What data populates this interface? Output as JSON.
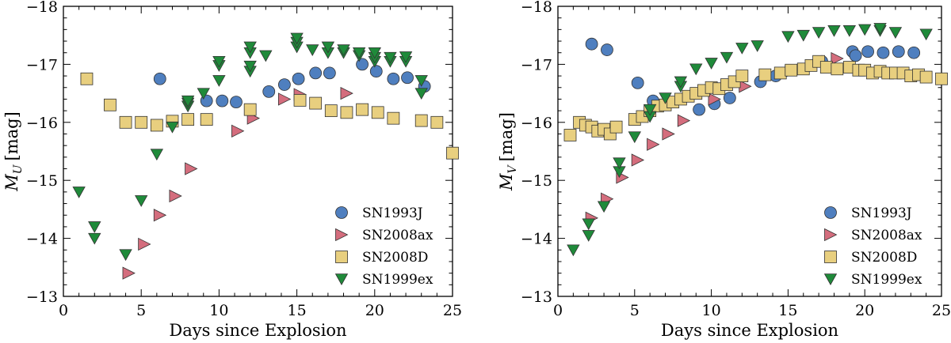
{
  "chart_data": [
    {
      "type": "scatter",
      "title": "",
      "xlabel": "Days since Explosion",
      "ylabel_main": "M",
      "ylabel_sub": "U",
      "ylabel_unit": "[mag]",
      "xlim": [
        0,
        25
      ],
      "ylim": [
        -13,
        -18
      ],
      "inverted_y": true,
      "xticks": [
        0,
        5,
        10,
        15,
        20,
        25
      ],
      "yticks": [
        -13,
        -14,
        -15,
        -16,
        -17,
        -18
      ],
      "xtick_labels": [
        "0",
        "5",
        "10",
        "15",
        "20",
        "25"
      ],
      "ytick_labels": [
        "−13",
        "−14",
        "−15",
        "−16",
        "−17",
        "−18"
      ],
      "legend_position": "lower-right",
      "series": [
        {
          "name": "SN1993J",
          "marker": "circle",
          "color": "#4f7fbf",
          "x": [
            6.2,
            9.2,
            10.2,
            11.1,
            13.2,
            14.2,
            15.1,
            16.2,
            17.1,
            19.2,
            20.1,
            21.2,
            22.1,
            23.2
          ],
          "y": [
            -16.75,
            -16.37,
            -16.37,
            -16.35,
            -16.53,
            -16.65,
            -16.75,
            -16.85,
            -16.85,
            -17.0,
            -16.88,
            -16.75,
            -16.77,
            -16.62
          ]
        },
        {
          "name": "SN2008ax",
          "marker": "triangle-right",
          "color": "#d46d7d",
          "x": [
            4.2,
            5.2,
            6.2,
            7.2,
            8.2,
            11.2,
            12.2,
            14.2,
            15.2,
            18.2
          ],
          "y": [
            -13.4,
            -13.9,
            -14.4,
            -14.73,
            -15.2,
            -15.85,
            -16.07,
            -16.4,
            -16.48,
            -16.5
          ]
        },
        {
          "name": "SN2008D",
          "marker": "square",
          "color": "#e8cf7f",
          "x": [
            1.5,
            3.0,
            4.0,
            5.0,
            6.0,
            7.0,
            8.0,
            9.2,
            12.0,
            15.2,
            16.2,
            17.2,
            18.2,
            19.2,
            20.2,
            21.2,
            23.0,
            24.0,
            25.0
          ],
          "y": [
            -16.75,
            -16.3,
            -16.0,
            -16.0,
            -15.95,
            -16.02,
            -16.05,
            -16.05,
            -16.22,
            -16.38,
            -16.33,
            -16.2,
            -16.17,
            -16.22,
            -16.17,
            -16.07,
            -16.03,
            -16.0,
            -15.47
          ]
        },
        {
          "name": "SN1999ex",
          "marker": "triangle-down",
          "color": "#1f8a3a",
          "x": [
            1.0,
            2.0,
            2.0,
            4.0,
            5.0,
            6.0,
            7.0,
            8.0,
            8.0,
            8.0,
            9.0,
            10.0,
            10.0,
            10.0,
            12.0,
            12.0,
            12.0,
            12.0,
            13.0,
            15.0,
            15.0,
            15.0,
            16.0,
            17.0,
            17.0,
            18.0,
            18.0,
            19.0,
            19.0,
            20.0,
            20.0,
            20.0,
            21.0,
            21.0,
            22.0,
            22.0,
            23.0,
            23.0
          ],
          "y": [
            -14.8,
            -14.2,
            -14.0,
            -13.72,
            -14.65,
            -15.45,
            -15.92,
            -16.28,
            -16.33,
            -16.37,
            -16.5,
            -16.72,
            -16.98,
            -17.05,
            -16.88,
            -16.97,
            -17.2,
            -17.3,
            -17.15,
            -17.3,
            -17.38,
            -17.45,
            -17.25,
            -17.2,
            -17.3,
            -17.2,
            -17.25,
            -17.15,
            -17.2,
            -17.05,
            -17.12,
            -17.2,
            -17.05,
            -17.12,
            -17.05,
            -17.13,
            -16.5,
            -16.72
          ]
        }
      ]
    },
    {
      "type": "scatter",
      "title": "",
      "xlabel": "Days since Explosion",
      "ylabel_main": "M",
      "ylabel_sub": "V",
      "ylabel_unit": "[mag]",
      "xlim": [
        0,
        25
      ],
      "ylim": [
        -13,
        -18
      ],
      "inverted_y": true,
      "xticks": [
        0,
        5,
        10,
        15,
        20,
        25
      ],
      "yticks": [
        -13,
        -14,
        -15,
        -16,
        -17,
        -18
      ],
      "xtick_labels": [
        "0",
        "5",
        "10",
        "15",
        "20",
        "25"
      ],
      "ytick_labels": [
        "−13",
        "−14",
        "−15",
        "−16",
        "−17",
        "−18"
      ],
      "legend_position": "lower-right",
      "series": [
        {
          "name": "SN1993J",
          "marker": "circle",
          "color": "#4f7fbf",
          "x": [
            2.2,
            3.2,
            5.2,
            6.2,
            9.2,
            10.2,
            11.2,
            13.2,
            14.2,
            17.2,
            19.2,
            19.4,
            20.2,
            21.2,
            22.2,
            23.2
          ],
          "y": [
            -17.35,
            -17.25,
            -16.68,
            -16.37,
            -16.22,
            -16.32,
            -16.42,
            -16.7,
            -16.8,
            -17.05,
            -17.22,
            -17.15,
            -17.22,
            -17.2,
            -17.22,
            -17.2
          ]
        },
        {
          "name": "SN2008ax",
          "marker": "triangle-right",
          "color": "#d46d7d",
          "x": [
            2.2,
            3.2,
            4.2,
            5.2,
            6.2,
            7.2,
            8.2,
            10.2,
            12.2,
            15.2,
            18.2
          ],
          "y": [
            -14.35,
            -14.68,
            -15.05,
            -15.35,
            -15.62,
            -15.8,
            -16.03,
            -16.4,
            -16.62,
            -16.88,
            -17.1
          ]
        },
        {
          "name": "SN2008D",
          "marker": "square",
          "color": "#e8cf7f",
          "x": [
            0.8,
            1.4,
            1.8,
            2.2,
            2.6,
            3.0,
            3.4,
            3.8,
            5.0,
            5.5,
            6.0,
            6.5,
            7.0,
            7.5,
            8.0,
            8.5,
            9.0,
            9.5,
            10.0,
            10.5,
            11.0,
            11.5,
            12.0,
            13.5,
            14.5,
            15.2,
            16.0,
            16.5,
            17.0,
            17.5,
            18.2,
            19.0,
            19.6,
            20.0,
            20.5,
            21.0,
            21.5,
            22.0,
            22.5,
            23.0,
            23.5,
            24.0,
            25.0
          ],
          "y": [
            -15.78,
            -16.0,
            -15.95,
            -15.92,
            -15.85,
            -15.88,
            -15.8,
            -15.92,
            -16.05,
            -16.1,
            -16.2,
            -16.28,
            -16.3,
            -16.35,
            -16.4,
            -16.45,
            -16.5,
            -16.55,
            -16.6,
            -16.58,
            -16.65,
            -16.7,
            -16.8,
            -16.82,
            -16.85,
            -16.9,
            -16.92,
            -16.98,
            -17.05,
            -16.95,
            -16.92,
            -16.95,
            -16.9,
            -16.9,
            -16.85,
            -16.88,
            -16.85,
            -16.85,
            -16.85,
            -16.8,
            -16.82,
            -16.78,
            -16.75
          ]
        },
        {
          "name": "SN1999ex",
          "marker": "triangle-down",
          "color": "#1f8a3a",
          "x": [
            1.0,
            2.0,
            2.0,
            3.0,
            4.0,
            4.0,
            5.0,
            6.0,
            6.0,
            7.0,
            8.0,
            8.0,
            9.0,
            10.0,
            11.0,
            12.0,
            13.0,
            15.0,
            16.0,
            17.0,
            18.0,
            19.0,
            20.0,
            21.0,
            21.0,
            22.0,
            24.0
          ],
          "y": [
            -13.8,
            -14.05,
            -14.25,
            -14.55,
            -15.15,
            -15.3,
            -15.75,
            -16.1,
            -16.22,
            -16.42,
            -16.62,
            -16.7,
            -16.92,
            -17.02,
            -17.12,
            -17.28,
            -17.32,
            -17.48,
            -17.5,
            -17.55,
            -17.58,
            -17.58,
            -17.6,
            -17.58,
            -17.62,
            -17.55,
            -17.52
          ]
        }
      ]
    }
  ]
}
